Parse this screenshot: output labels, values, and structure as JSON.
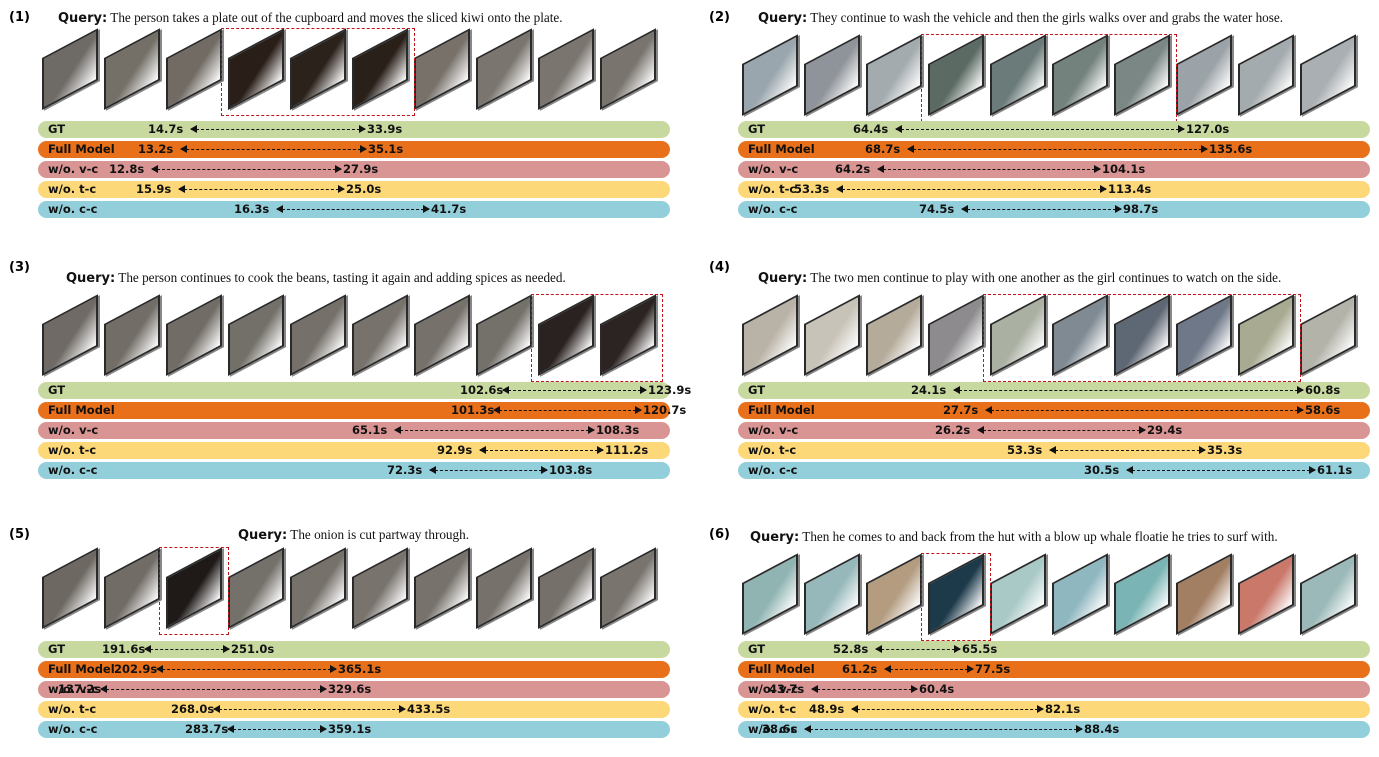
{
  "query_label": "Query:",
  "row_colors": [
    "#c8d9a0",
    "#e8701a",
    "#d99494",
    "#fdd878",
    "#93cfdb"
  ],
  "panels": [
    {
      "number": "(1)",
      "query": "The person takes a plate out of the cupboard and moves the sliced kiwi onto the plate.",
      "frame_colors": [
        "#6e6a66",
        "#747068",
        "#716b64",
        "#2a1e18",
        "#2c221c",
        "#2a201a",
        "#77716a",
        "#7a756e",
        "#7a756f",
        "#79746e"
      ],
      "highlight": [
        3,
        5
      ],
      "rows": [
        {
          "label": "GT",
          "start": "14.7s",
          "end": "33.9s"
        },
        {
          "label": "Full Model",
          "start": "13.2s",
          "end": "35.1s"
        },
        {
          "label": "w/o. v-c",
          "start": "12.8s",
          "end": "27.9s"
        },
        {
          "label": "w/o. t-c",
          "start": "15.9s",
          "end": "25.0s"
        },
        {
          "label": "w/o. c-c",
          "start": "16.3s",
          "end": "41.7s"
        }
      ]
    },
    {
      "number": "(2)",
      "query": "They continue to wash the vehicle and then the girls walks over and grabs the water hose.",
      "frame_colors": [
        "#9aa6ad",
        "#8f949a",
        "#a3abaf",
        "#5b6a62",
        "#6a7b79",
        "#74827e",
        "#7a8785",
        "#9ca3a8",
        "#a4abae",
        "#a9afb2"
      ],
      "highlight": [
        3,
        6
      ],
      "rows": [
        {
          "label": "GT",
          "start": "64.4s",
          "end": "127.0s"
        },
        {
          "label": "Full Model",
          "start": "68.7s",
          "end": "135.6s"
        },
        {
          "label": "w/o. v-c",
          "start": "64.2s",
          "end": "104.1s"
        },
        {
          "label": "w/o. t-c",
          "start": "53.3s",
          "end": "113.4s"
        },
        {
          "label": "w/o. c-c",
          "start": "74.5s",
          "end": "98.7s"
        }
      ]
    },
    {
      "number": "(3)",
      "query": "The person continues to cook the beans, tasting it again and adding spices as needed.",
      "frame_colors": [
        "#6f6a65",
        "#726d67",
        "#716c66",
        "#737069",
        "#75706a",
        "#77726c",
        "#76716b",
        "#74706a",
        "#2a2220",
        "#2c2422"
      ],
      "highlight": [
        8,
        9
      ],
      "rows": [
        {
          "label": "GT",
          "start": "102.6s",
          "end": "123.9s"
        },
        {
          "label": "Full Model",
          "start": "101.3s",
          "end": "120.7s"
        },
        {
          "label": "w/o. v-c",
          "start": "65.1s",
          "end": "108.3s"
        },
        {
          "label": "w/o. t-c",
          "start": "92.9s",
          "end": "111.2s"
        },
        {
          "label": "w/o. c-c",
          "start": "72.3s",
          "end": "103.8s"
        }
      ]
    },
    {
      "number": "(4)",
      "query": "The two men continue to play with one another as the girl continues to watch on the side.",
      "frame_colors": [
        "#b9b2a6",
        "#c8c3b8",
        "#b5ab9a",
        "#8d8b8e",
        "#aab0a2",
        "#7f8a93",
        "#5e6774",
        "#6f7888",
        "#a9aa92",
        "#b4b3aa"
      ],
      "highlight": [
        4,
        8
      ],
      "rows": [
        {
          "label": "GT",
          "start": "24.1s",
          "end": "60.8s"
        },
        {
          "label": "Full Model",
          "start": "27.7s",
          "end": "58.6s"
        },
        {
          "label": "w/o. v-c",
          "start": "26.2s",
          "end": "29.4s"
        },
        {
          "label": "w/o. t-c",
          "start": "53.3s",
          "end": "35.3s"
        },
        {
          "label": "w/o. c-c",
          "start": "30.5s",
          "end": "61.1s"
        }
      ]
    },
    {
      "number": "(5)",
      "query": "The onion is cut partway through.",
      "frame_colors": [
        "#6d6862",
        "#716c66",
        "#1f1a18",
        "#74706a",
        "#76716b",
        "#78736d",
        "#77726c",
        "#76716b",
        "#75706a",
        "#79746e"
      ],
      "highlight": [
        2,
        2
      ],
      "rows": [
        {
          "label": "GT",
          "start": "191.6s",
          "end": "251.0s"
        },
        {
          "label": "Full Model",
          "start": "202.9s",
          "end": "365.1s"
        },
        {
          "label": "w/o. v-c",
          "start": "137.2s",
          "end": "329.6s"
        },
        {
          "label": "w/o. t-c",
          "start": "268.0s",
          "end": "433.5s"
        },
        {
          "label": "w/o. c-c",
          "start": "283.7s",
          "end": "359.1s"
        }
      ]
    },
    {
      "number": "(6)",
      "query": "Then he comes to and back from the hut with a blow up whale floatie he tries to surf with.",
      "frame_colors": [
        "#8fb4b2",
        "#97b8bb",
        "#b39c80",
        "#1d3a4a",
        "#a9c9c7",
        "#8fb7c0",
        "#7ab4b4",
        "#a27e62",
        "#c9786a",
        "#9ab9b8"
      ],
      "highlight": [
        3,
        3
      ],
      "rows": [
        {
          "label": "GT",
          "start": "52.8s",
          "end": "65.5s"
        },
        {
          "label": "Full Model",
          "start": "61.2s",
          "end": "77.5s"
        },
        {
          "label": "w/o. v-c",
          "start": "43.7s",
          "end": "60.4s"
        },
        {
          "label": "w/o. t-c",
          "start": "48.9s",
          "end": "82.1s"
        },
        {
          "label": "w/o. c-c",
          "start": "38.6s",
          "end": "88.4s"
        }
      ]
    }
  ]
}
